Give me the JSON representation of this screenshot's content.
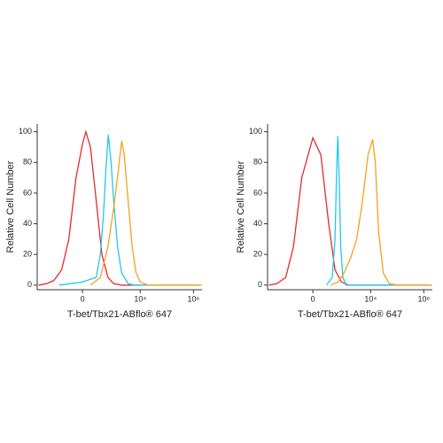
{
  "chart_data": [
    {
      "type": "line",
      "ylabel": "Relative Cell Number",
      "xlabel": "T-bet/Tbx21-ABflo® 647",
      "xscale": "biexponential",
      "xlim": [
        -3400,
        2100000
      ],
      "xticks": [
        0,
        {
          "value": 10000,
          "label": "10⁴"
        },
        {
          "value": 1000000,
          "label": "10⁶"
        }
      ],
      "ylim": [
        -3,
        105
      ],
      "yticks": [
        0,
        20,
        40,
        60,
        80,
        100
      ],
      "series": [
        {
          "color": "#e8282e",
          "x": [
            -3000,
            -1500,
            -800,
            -400,
            -200,
            -80,
            0,
            40,
            100,
            200,
            350,
            600,
            1000,
            2000,
            10000,
            2000000
          ],
          "values": [
            0,
            1,
            3,
            10,
            30,
            70,
            92,
            100,
            90,
            55,
            20,
            5,
            1,
            0,
            0,
            0
          ]
        },
        {
          "color": "#1ec8ef",
          "x": [
            -500,
            0,
            200,
            300,
            400,
            500,
            620,
            800,
            1000,
            1400,
            2000,
            3500,
            6000,
            2000000
          ],
          "values": [
            0,
            2,
            5,
            20,
            45,
            75,
            98,
            80,
            55,
            25,
            8,
            1,
            0,
            0
          ]
        },
        {
          "color": "#f5a11c",
          "x": [
            100,
            300,
            600,
            1000,
            1500,
            2000,
            2500,
            3500,
            5000,
            7000,
            10000,
            20000,
            2000000
          ],
          "values": [
            0,
            5,
            25,
            50,
            75,
            94,
            85,
            55,
            25,
            8,
            2,
            0,
            0
          ]
        }
      ]
    },
    {
      "type": "line",
      "ylabel": "Relative Cell Number",
      "xlabel": "T-bet/Tbx21-ABflo® 647",
      "xscale": "biexponential",
      "xlim": [
        -3400,
        2100000
      ],
      "xticks": [
        0,
        {
          "value": 10000,
          "label": "10⁴"
        },
        {
          "value": 1000000,
          "label": "10⁶"
        }
      ],
      "ylim": [
        -3,
        105
      ],
      "yticks": [
        0,
        20,
        40,
        60,
        80,
        100
      ],
      "series": [
        {
          "color": "#e8282e",
          "x": [
            -3000,
            -1500,
            -700,
            -350,
            -150,
            0,
            100,
            250,
            450,
            800,
            1500,
            2000000
          ],
          "values": [
            0,
            1,
            5,
            25,
            70,
            96,
            85,
            40,
            10,
            2,
            0,
            0
          ]
        },
        {
          "color": "#1ec8ef",
          "x": [
            200,
            350,
            450,
            530,
            580,
            650,
            750,
            900,
            1200,
            2000000
          ],
          "values": [
            0,
            5,
            30,
            80,
            97,
            70,
            25,
            5,
            0,
            0
          ]
        },
        {
          "color": "#f5a11c",
          "x": [
            300,
            600,
            1000,
            1800,
            3000,
            5000,
            8000,
            12000,
            15000,
            20000,
            30000,
            50000,
            100000,
            2000000
          ],
          "values": [
            0,
            2,
            8,
            18,
            30,
            55,
            85,
            95,
            80,
            35,
            8,
            1,
            0,
            0
          ]
        }
      ]
    }
  ]
}
